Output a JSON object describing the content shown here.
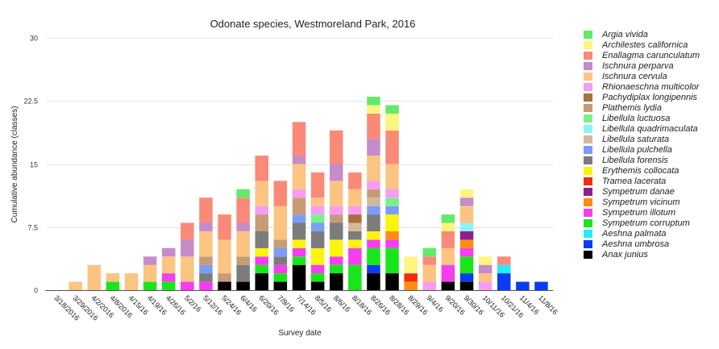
{
  "chart_data": {
    "type": "bar",
    "stacked": true,
    "title": "Odonate species, Westmoreland Park, 2016",
    "xlabel": "Survey date",
    "ylabel": "Cumulative abundance (classes)",
    "ylim": [
      0,
      30
    ],
    "yticks": [
      "0",
      "7.5",
      "15",
      "22.5",
      "30"
    ],
    "ytick_values": [
      0,
      7.5,
      15,
      22.5,
      30
    ],
    "grid": true,
    "legend_position": "right",
    "categories": [
      "3/18/2016",
      "3/29/2016",
      "4/2/2016",
      "4/8/2016",
      "4/15/16",
      "4/19/16",
      "4/26/16",
      "5/2/16",
      "5/12/16",
      "5/24/16",
      "6/4/16",
      "6/20/16",
      "7/9/16",
      "7/14/16",
      "8/5/16",
      "8/6/16",
      "8/18/16",
      "8/26/16",
      "8/28/16",
      "8/29/16",
      "9/4/16",
      "9/20/16",
      "9/30/16",
      "10/11/16",
      "10/21/16",
      "11/4/16",
      "11/8/16"
    ],
    "series": [
      {
        "name": "Anax junius",
        "color": "#000000",
        "values": [
          0,
          0,
          0,
          0,
          0,
          0,
          0,
          0,
          0,
          1,
          1,
          2,
          1,
          3,
          1,
          2,
          0,
          2,
          2,
          0,
          0,
          1,
          1,
          0,
          0,
          0,
          0
        ]
      },
      {
        "name": "Aeshna umbrosa",
        "color": "#0c3cf0",
        "values": [
          0,
          0,
          0,
          0,
          0,
          0,
          0,
          0,
          0,
          0,
          0,
          0,
          0,
          0,
          0,
          0,
          0,
          1,
          0,
          0,
          0,
          0,
          1,
          0,
          2,
          1,
          1
        ]
      },
      {
        "name": "Aeshna palmata",
        "color": "#22eef5",
        "values": [
          0,
          0,
          0,
          0,
          0,
          0,
          0,
          0,
          0,
          0,
          0,
          0,
          0,
          0,
          0,
          0,
          0,
          0,
          0,
          0,
          0,
          0,
          0,
          0,
          1,
          0,
          0
        ]
      },
      {
        "name": "Sympetrum corruptum",
        "color": "#19e619",
        "values": [
          0,
          0,
          0,
          1,
          0,
          1,
          1,
          0,
          0,
          0,
          0,
          1,
          1,
          1,
          1,
          1,
          3,
          2,
          3,
          0,
          0,
          0,
          2,
          0,
          0,
          0,
          0
        ]
      },
      {
        "name": "Sympetrum illotum",
        "color": "#f43ef0",
        "values": [
          0,
          0,
          0,
          0,
          0,
          0,
          1,
          1,
          1,
          0,
          0,
          1,
          1,
          1,
          1,
          1,
          2,
          1,
          1,
          0,
          0,
          2,
          1,
          0,
          0,
          0,
          0
        ]
      },
      {
        "name": "Sympetrum vicinum",
        "color": "#ff8c10",
        "values": [
          0,
          0,
          0,
          0,
          0,
          0,
          0,
          0,
          0,
          0,
          0,
          0,
          0,
          0,
          0,
          0,
          0,
          0,
          1,
          1,
          0,
          0,
          1,
          0,
          0,
          0,
          0
        ]
      },
      {
        "name": "Sympetrum danae",
        "color": "#8e1f8e",
        "values": [
          0,
          0,
          0,
          0,
          0,
          0,
          0,
          0,
          0,
          0,
          0,
          0,
          0,
          0,
          0,
          0,
          0,
          0,
          0,
          0,
          0,
          0,
          1,
          0,
          0,
          0,
          0
        ]
      },
      {
        "name": "Tramea lacerata",
        "color": "#f52a0f",
        "values": [
          0,
          0,
          0,
          0,
          0,
          0,
          0,
          0,
          0,
          0,
          0,
          0,
          0,
          0,
          0,
          0,
          0,
          0,
          0,
          1,
          0,
          0,
          0,
          0,
          0,
          0,
          0
        ]
      },
      {
        "name": "Erythemis collocata",
        "color": "#fff40a",
        "values": [
          0,
          0,
          0,
          0,
          0,
          0,
          0,
          0,
          0,
          0,
          0,
          1,
          0,
          1,
          2,
          2,
          1,
          1,
          2,
          0,
          0,
          0,
          0,
          0,
          0,
          0,
          0
        ]
      },
      {
        "name": "Libellula forensis",
        "color": "#7c7c7c",
        "values": [
          0,
          0,
          0,
          0,
          0,
          0,
          0,
          0,
          1,
          0,
          2,
          2,
          1,
          2,
          2,
          2,
          1,
          2,
          0,
          0,
          0,
          0,
          0,
          0,
          0,
          0,
          0
        ]
      },
      {
        "name": "Libellula pulchella",
        "color": "#7c9cf5",
        "values": [
          0,
          0,
          0,
          0,
          0,
          0,
          0,
          0,
          1,
          0,
          0,
          0,
          1,
          1,
          1,
          0,
          0,
          1,
          1,
          0,
          0,
          0,
          0,
          0,
          0,
          0,
          0
        ]
      },
      {
        "name": "Libellula saturata",
        "color": "#d2b89c",
        "values": [
          0,
          0,
          0,
          0,
          0,
          0,
          0,
          0,
          0,
          0,
          0,
          0,
          0,
          0,
          0,
          0,
          1,
          1,
          0,
          0,
          0,
          0,
          0,
          0,
          0,
          0,
          0
        ]
      },
      {
        "name": "Libellula quadrimaculata",
        "color": "#8ef2f5",
        "values": [
          0,
          0,
          0,
          0,
          0,
          0,
          0,
          0,
          0,
          0,
          0,
          0,
          0,
          0,
          0,
          0,
          0,
          0,
          0,
          0,
          0,
          0,
          1,
          0,
          0,
          0,
          0
        ]
      },
      {
        "name": "Libellula luctuosa",
        "color": "#7af08c",
        "values": [
          0,
          0,
          0,
          0,
          0,
          0,
          0,
          0,
          0,
          0,
          0,
          0,
          0,
          0,
          1,
          0,
          0,
          0,
          1,
          0,
          0,
          0,
          0,
          0,
          0,
          0,
          0
        ]
      },
      {
        "name": "Plathemis lydia",
        "color": "#c69c78",
        "values": [
          0,
          0,
          0,
          0,
          0,
          0,
          0,
          0,
          1,
          1,
          1,
          2,
          1,
          2,
          0,
          1,
          0,
          1,
          0,
          0,
          0,
          0,
          0,
          0,
          0,
          0,
          0
        ]
      },
      {
        "name": "Pachydiplax longipennis",
        "color": "#a8703c",
        "values": [
          0,
          0,
          0,
          0,
          0,
          0,
          0,
          0,
          0,
          0,
          0,
          0,
          0,
          0,
          0,
          0,
          1,
          0,
          0,
          0,
          0,
          0,
          0,
          0,
          0,
          0,
          0
        ]
      },
      {
        "name": "Rhionaeschna multicolor",
        "color": "#f89cf2",
        "values": [
          0,
          0,
          0,
          0,
          0,
          0,
          0,
          0,
          0,
          0,
          0,
          1,
          0,
          1,
          1,
          1,
          1,
          1,
          1,
          0,
          1,
          0,
          0,
          1,
          0,
          0,
          0
        ]
      },
      {
        "name": "Ischnura cervula",
        "color": "#fcc482",
        "values": [
          0,
          1,
          3,
          1,
          2,
          2,
          2,
          3,
          3,
          4,
          3,
          3,
          4,
          3,
          1,
          3,
          2,
          3,
          3,
          0,
          2,
          2,
          2,
          1,
          0,
          0,
          0
        ]
      },
      {
        "name": "Ischnura perparva",
        "color": "#c48cc8",
        "values": [
          0,
          0,
          0,
          0,
          0,
          1,
          1,
          2,
          1,
          0,
          1,
          0,
          0,
          1,
          0,
          2,
          0,
          2,
          0,
          0,
          0,
          0,
          1,
          1,
          0,
          0,
          0
        ]
      },
      {
        "name": "Enallagma carunculatum",
        "color": "#fa8a78",
        "values": [
          0,
          0,
          0,
          0,
          0,
          0,
          0,
          2,
          3,
          3,
          3,
          3,
          3,
          4,
          3,
          4,
          2,
          3,
          4,
          0,
          1,
          2,
          0,
          0,
          1,
          0,
          0
        ]
      },
      {
        "name": "Archilestes californica",
        "color": "#fdf57e",
        "values": [
          0,
          0,
          0,
          0,
          0,
          0,
          0,
          0,
          0,
          0,
          0,
          0,
          0,
          0,
          0,
          0,
          0,
          1,
          2,
          2,
          0,
          1,
          1,
          1,
          0,
          0,
          0
        ]
      },
      {
        "name": "Argia vivida",
        "color": "#62ea68",
        "values": [
          0,
          0,
          0,
          0,
          0,
          0,
          0,
          0,
          0,
          0,
          1,
          0,
          0,
          0,
          0,
          0,
          0,
          1,
          1,
          0,
          1,
          1,
          0,
          0,
          0,
          0,
          0
        ]
      }
    ],
    "legend_order": [
      "Argia vivida",
      "Archilestes californica",
      "Enallagma carunculatum",
      "Ischnura perparva",
      "Ischnura cervula",
      "Rhionaeschna multicolor",
      "Pachydiplax longipennis",
      "Plathemis lydia",
      "Libellula luctuosa",
      "Libellula quadrimaculata",
      "Libellula saturata",
      "Libellula pulchella",
      "Libellula forensis",
      "Erythemis collocata",
      "Tramea lacerata",
      "Sympetrum danae",
      "Sympetrum vicinum",
      "Sympetrum illotum",
      "Sympetrum corruptum",
      "Aeshna palmata",
      "Aeshna umbrosa",
      "Anax junius"
    ]
  }
}
